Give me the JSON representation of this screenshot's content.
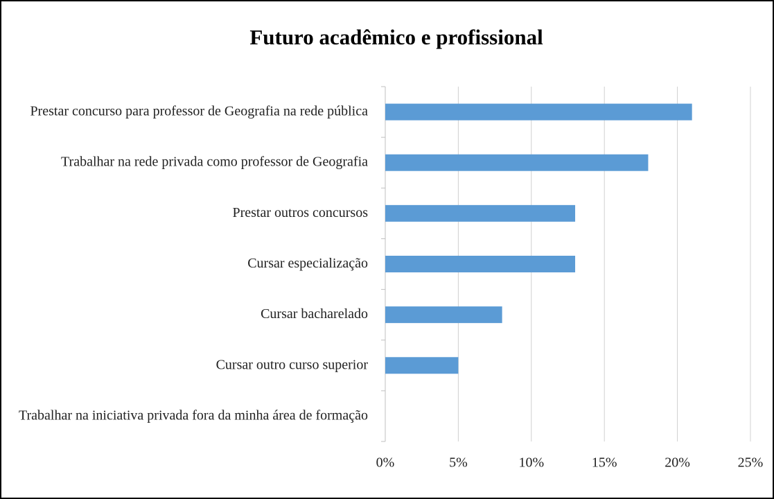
{
  "chart_data": {
    "type": "bar",
    "orientation": "horizontal",
    "title": "Futuro acadêmico e profissional",
    "categories": [
      "Prestar concurso para professor de Geografia na rede pública",
      "Trabalhar na rede privada como professor de Geografia",
      "Prestar outros concursos",
      "Cursar especialização",
      "Cursar bacharelado",
      "Cursar outro curso superior",
      "Trabalhar na iniciativa privada fora da minha área de formação"
    ],
    "values": [
      21,
      18,
      13,
      13,
      8,
      5,
      0
    ],
    "color": "#5b9bd5",
    "xlim": [
      0,
      25
    ],
    "xticks": [
      {
        "value": 0,
        "label": "0%"
      },
      {
        "value": 5,
        "label": "5%"
      },
      {
        "value": 10,
        "label": "10%"
      },
      {
        "value": 15,
        "label": "15%"
      },
      {
        "value": 20,
        "label": "20%"
      },
      {
        "value": 25,
        "label": "25%"
      }
    ],
    "grid": true
  }
}
